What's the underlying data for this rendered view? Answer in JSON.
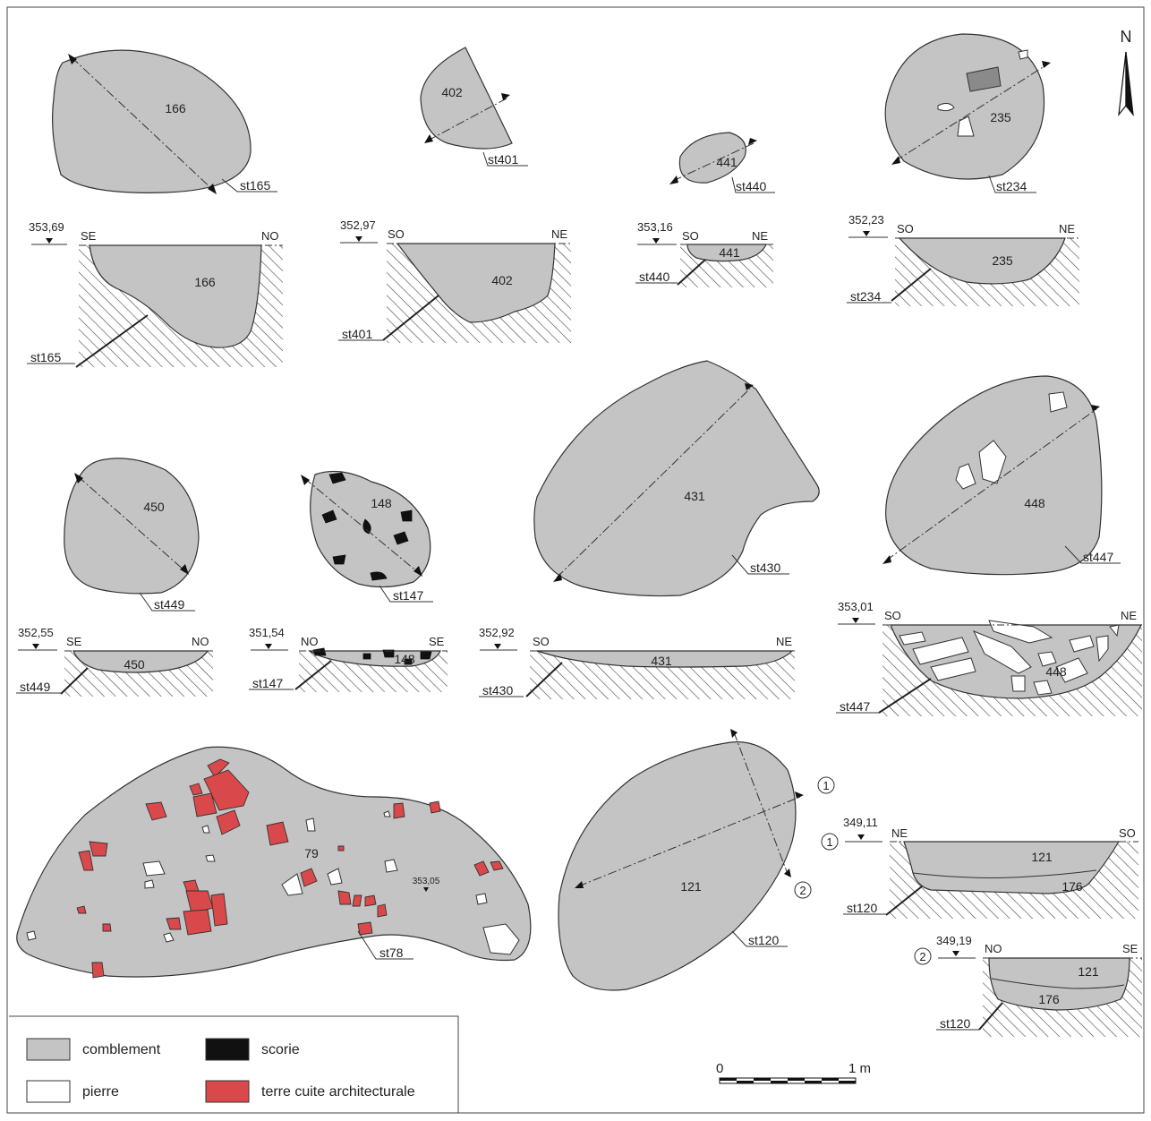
{
  "north": {
    "label": "N"
  },
  "features": {
    "f166": {
      "fill": "166",
      "struct": "st165"
    },
    "f402": {
      "fill": "402",
      "struct": "st401"
    },
    "f441": {
      "fill": "441",
      "struct": "st440"
    },
    "f235": {
      "fill": "235",
      "struct": "st234"
    },
    "f450": {
      "fill": "450",
      "struct": "st449"
    },
    "f148": {
      "fill": "148",
      "struct": "st147"
    },
    "f431": {
      "fill": "431",
      "struct": "st430"
    },
    "f448": {
      "fill": "448",
      "struct": "st447"
    },
    "f79": {
      "fill": "79",
      "struct": "st78",
      "spot_level": "353,05"
    },
    "f121": {
      "fill": "121",
      "struct": "st120",
      "section_1": "1",
      "section_2": "2"
    }
  },
  "sections": {
    "s166": {
      "level": "353,69",
      "left": "SE",
      "right": "NO",
      "fill": "166",
      "struct": "st165"
    },
    "s402": {
      "level": "352,97",
      "left": "SO",
      "right": "NE",
      "fill": "402",
      "struct": "st401"
    },
    "s441": {
      "level": "353,16",
      "left": "SO",
      "right": "NE",
      "fill": "441",
      "struct": "st440"
    },
    "s235": {
      "level": "352,23",
      "left": "SO",
      "right": "NE",
      "fill": "235",
      "struct": "st234"
    },
    "s450": {
      "level": "352,55",
      "left": "SE",
      "right": "NO",
      "fill": "450",
      "struct": "st449"
    },
    "s148": {
      "level": "351,54",
      "left": "NO",
      "right": "SE",
      "fill": "148",
      "struct": "st147"
    },
    "s431": {
      "level": "352,92",
      "left": "SO",
      "right": "NE",
      "fill": "431",
      "struct": "st430"
    },
    "s448": {
      "level": "353,01",
      "left": "SO",
      "right": "NE",
      "fill": "448",
      "struct": "st447"
    },
    "s121a": {
      "marker": "1",
      "level": "349,11",
      "left": "NE",
      "right": "SO",
      "fill_upper": "121",
      "fill_lower": "176",
      "struct": "st120"
    },
    "s121b": {
      "marker": "2",
      "level": "349,19",
      "left": "NO",
      "right": "SE",
      "fill_upper": "121",
      "fill_lower": "176",
      "struct": "st120"
    }
  },
  "legend": {
    "items": [
      {
        "label": "comblement",
        "color": "#c4c4c4"
      },
      {
        "label": "scorie",
        "color": "#111111"
      },
      {
        "label": "pierre",
        "color": "#ffffff"
      },
      {
        "label": "terre cuite architecturale",
        "color": "#d9484a"
      }
    ]
  },
  "scale_bar": {
    "start": "0",
    "end": "1 m"
  }
}
